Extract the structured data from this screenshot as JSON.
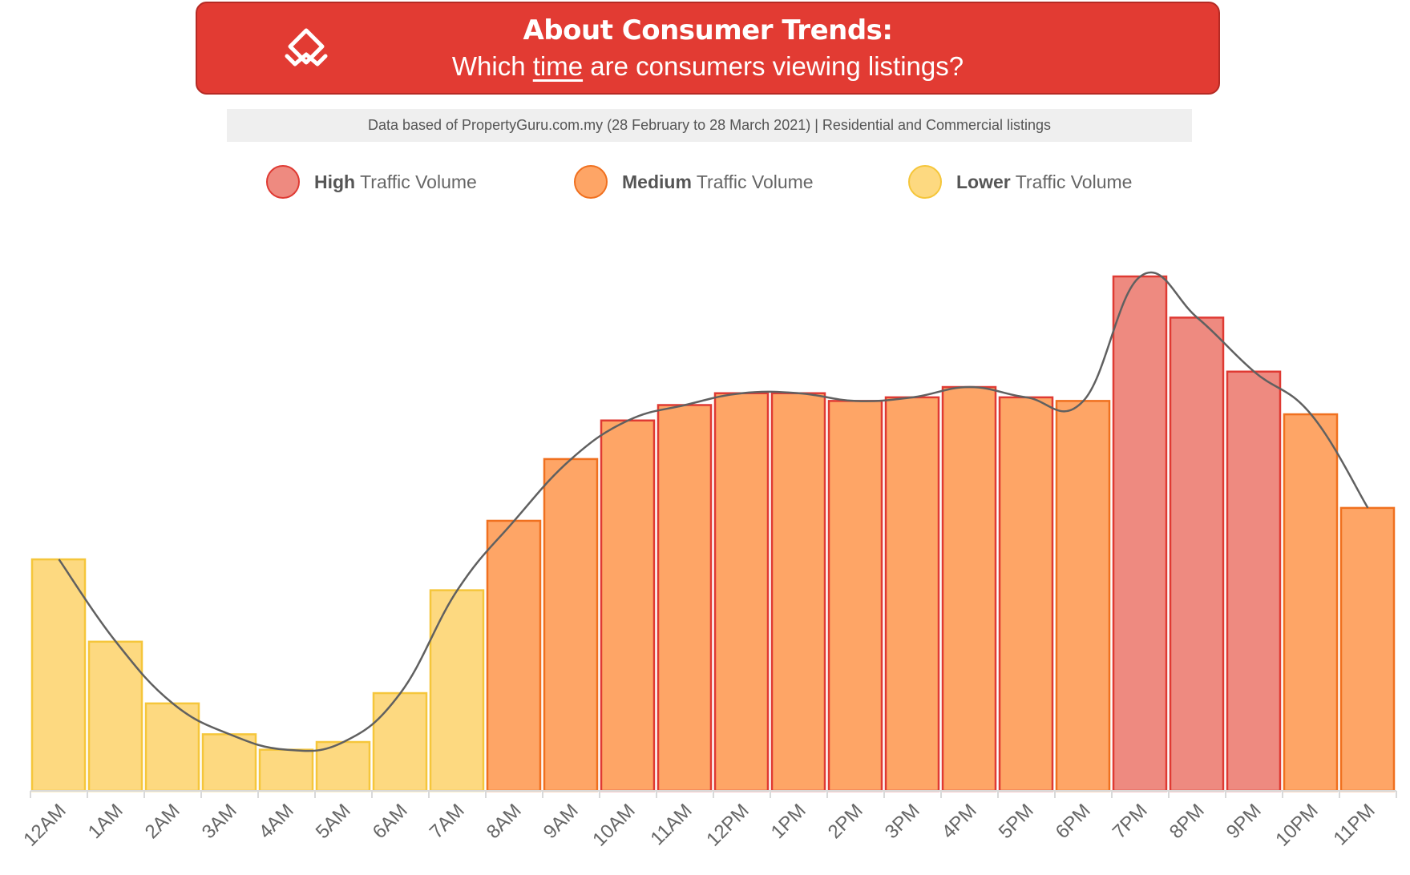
{
  "header": {
    "title": "About Consumer Trends:",
    "subtitle_pre": "Which ",
    "subtitle_emph": "time",
    "subtitle_post": " are consumers viewing listings?",
    "logo_icon": "propertyguru-logo-icon"
  },
  "source_note": "Data based of PropertyGuru.com.my (28 February to 28 March 2021) | Residential and Commercial listings",
  "legend": [
    {
      "bold": "High",
      "rest": " Traffic Volume",
      "fill": "#ee8a80",
      "stroke": "#df3a33"
    },
    {
      "bold": "Medium",
      "rest": " Traffic Volume",
      "fill": "#fea566",
      "stroke": "#f0701f"
    },
    {
      "bold": "Lower",
      "rest": " Traffic Volume",
      "fill": "#fdd980",
      "stroke": "#f5c63b"
    }
  ],
  "colors": {
    "high_fill": "#ee8a80",
    "high_stroke": "#df3a33",
    "medium_fill": "#fea566",
    "medium_stroke": "#f0701f",
    "medium_red_stroke": "#df3a33",
    "lower_fill": "#fdd980",
    "lower_stroke": "#f5c63b",
    "trend_line": "#606060",
    "axis": "#d9d9d9",
    "banner": "#e23b33"
  },
  "chart_data": {
    "type": "bar",
    "categories": [
      "12AM",
      "1AM",
      "2AM",
      "3AM",
      "4AM",
      "5AM",
      "6AM",
      "7AM",
      "8AM",
      "9AM",
      "10AM",
      "11AM",
      "12PM",
      "1PM",
      "2PM",
      "3PM",
      "4PM",
      "5PM",
      "6PM",
      "7PM",
      "8PM",
      "9PM",
      "10PM",
      "11PM"
    ],
    "values": [
      45,
      29,
      17,
      11,
      8,
      9.5,
      19,
      39,
      52.5,
      64.5,
      72,
      75,
      77.3,
      77.3,
      75.8,
      76.5,
      78.5,
      76.5,
      75.8,
      100,
      92,
      81.5,
      73.2,
      55
    ],
    "volume": [
      "Lower",
      "Lower",
      "Lower",
      "Lower",
      "Lower",
      "Lower",
      "Lower",
      "Lower",
      "Medium",
      "Medium",
      "Medium",
      "Medium",
      "Medium",
      "Medium",
      "Medium",
      "Medium",
      "Medium",
      "Medium",
      "Medium",
      "High",
      "High",
      "High",
      "Medium",
      "Medium"
    ],
    "ylim": [
      0,
      100
    ],
    "title": "",
    "xlabel": "",
    "ylabel": "",
    "trend_line": true,
    "grid": false
  }
}
